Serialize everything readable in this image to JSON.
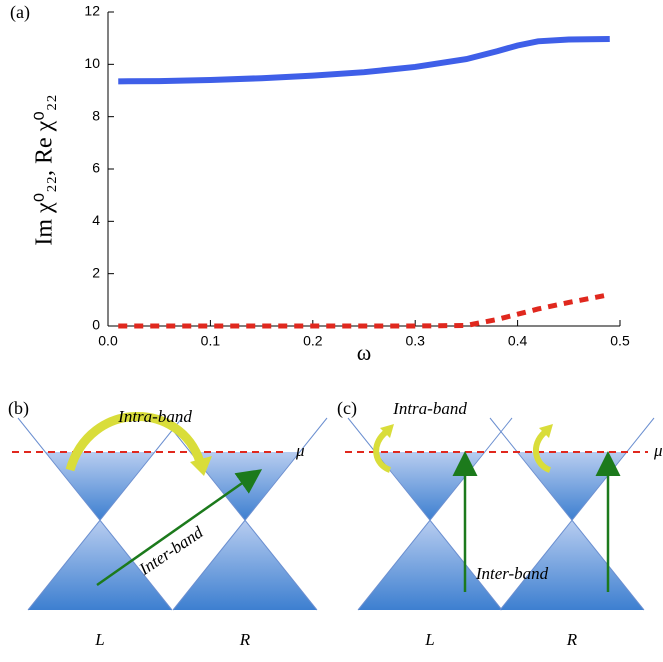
{
  "chart_data": {
    "type": "line",
    "panel_label": "(a)",
    "x_label": "ω",
    "y_label": "Im χ⁰₂₂, Re χ⁰₂₂",
    "x": [
      0.01,
      0.05,
      0.1,
      0.15,
      0.2,
      0.25,
      0.3,
      0.35,
      0.38,
      0.4,
      0.42,
      0.45,
      0.49
    ],
    "series": [
      {
        "color": "#3f5fe8",
        "style": "solid",
        "values": [
          9.35,
          9.36,
          9.4,
          9.47,
          9.57,
          9.7,
          9.9,
          10.2,
          10.5,
          10.72,
          10.88,
          10.95,
          10.97
        ]
      },
      {
        "color": "#e0281e",
        "style": "dashed",
        "values": [
          0,
          0,
          0,
          0,
          0,
          0,
          0,
          0.02,
          0.25,
          0.45,
          0.65,
          0.9,
          1.2
        ]
      }
    ],
    "xlim": [
      0,
      0.5
    ],
    "ylim": [
      0,
      12
    ],
    "xticks": [
      {
        "value": 0,
        "label": "0.0"
      },
      0.1,
      0.2,
      0.3,
      0.4,
      {
        "value": 0.5,
        "label": "0.5"
      }
    ],
    "yticks": [
      0,
      2,
      4,
      6,
      8,
      10,
      12
    ]
  },
  "diagrams": [
    {
      "label": "(b)",
      "intra": "Intra-band",
      "inter": "Inter-band",
      "mu": "μ",
      "left": "L",
      "right": "R"
    },
    {
      "label": "(c)",
      "intra": "Intra-band",
      "inter": "Inter-band",
      "mu": "μ",
      "left": "L",
      "right": "R"
    }
  ]
}
